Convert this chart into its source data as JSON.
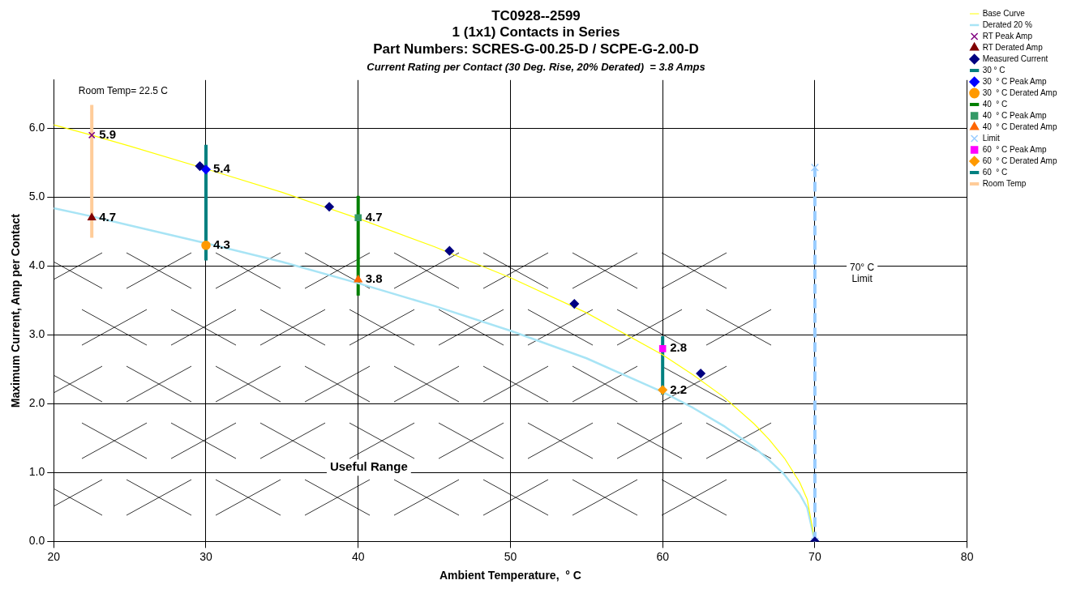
{
  "chart_data": {
    "type": "line",
    "title": "TC0928--2599\n1 (1x1) Contacts in Series\nPart Numbers: SCRES-G-00.25-D / SCPE-G-2.00-D",
    "subtitle": "Current Rating per Contact (30 Deg. Rise, 20% Derated)  = 3.8 Amps",
    "xlabel": "Ambient Temperature,  ° C",
    "ylabel": "Maximum Current, Amp per Contact",
    "xlim": [
      20,
      80
    ],
    "xticks": [
      20,
      30,
      40,
      50,
      60,
      70,
      80
    ],
    "ylim": [
      0,
      6.7
    ],
    "yticks": [
      {
        "value": 0,
        "label": "0.0"
      },
      {
        "value": 1,
        "label": "1.0"
      },
      {
        "value": 2,
        "label": "2.0"
      },
      {
        "value": 3,
        "label": "3.0"
      },
      {
        "value": 4,
        "label": "4.0"
      },
      {
        "value": 5,
        "label": "5.0"
      },
      {
        "value": 6,
        "label": "6.0"
      }
    ],
    "grid": true,
    "legend": "top right",
    "annotations": [
      "Room Temp= 22.5 C",
      "Useful Range",
      "70° C\nLimit"
    ],
    "series": [
      {
        "name": "Base Curve",
        "type": "line",
        "color": "#ffff00",
        "marker": "none",
        "x": [
          20,
          22.5,
          25,
          30,
          35,
          40,
          45,
          50,
          55,
          60,
          62,
          64,
          66,
          67,
          68,
          69,
          69.5,
          70
        ],
        "values": [
          6.05,
          5.9,
          5.74,
          5.41,
          5.07,
          4.69,
          4.28,
          3.83,
          3.32,
          2.71,
          2.42,
          2.1,
          1.71,
          1.48,
          1.21,
          0.86,
          0.61,
          0
        ]
      },
      {
        "name": "Derated 20 %",
        "type": "line",
        "color": "#a8e4f5",
        "marker": "none",
        "x": [
          20,
          22.5,
          25,
          30,
          35,
          40,
          45,
          50,
          55,
          60,
          62,
          64,
          66,
          67,
          68,
          69,
          69.5,
          70
        ],
        "values": [
          4.84,
          4.72,
          4.59,
          4.33,
          4.06,
          3.75,
          3.42,
          3.06,
          2.66,
          2.17,
          1.94,
          1.68,
          1.37,
          1.18,
          0.97,
          0.69,
          0.49,
          0
        ]
      },
      {
        "name": "RT Peak Amp",
        "type": "scatter",
        "color": "#800080",
        "marker": "cross",
        "x": [
          22.5
        ],
        "values": [
          5.9
        ],
        "value_labels": [
          "5.9"
        ]
      },
      {
        "name": "RT Derated Amp",
        "type": "scatter",
        "color": "#800000",
        "marker": "triangle",
        "x": [
          22.5
        ],
        "values": [
          4.7
        ],
        "value_labels": [
          "4.7"
        ]
      },
      {
        "name": "Measured Current",
        "type": "scatter",
        "color": "#000080",
        "marker": "diamond",
        "x": [
          29.6,
          38.1,
          46.0,
          54.2,
          62.5,
          70
        ],
        "values": [
          5.45,
          4.86,
          4.22,
          3.45,
          2.44,
          0
        ]
      },
      {
        "name": "30 ° C",
        "type": "line",
        "color": "#008080",
        "marker": "none",
        "x": [
          30,
          30
        ],
        "values": [
          4.08,
          5.76
        ]
      },
      {
        "name": "30  ° C Peak Amp",
        "type": "scatter",
        "color": "#0000ff",
        "marker": "diamond",
        "x": [
          30
        ],
        "values": [
          5.4
        ],
        "value_labels": [
          "5.4"
        ]
      },
      {
        "name": "30  ° C Derated Amp",
        "type": "scatter",
        "color": "#ff9900",
        "marker": "circle",
        "x": [
          30
        ],
        "values": [
          4.3
        ],
        "value_labels": [
          "4.3"
        ]
      },
      {
        "name": "40  ° C",
        "type": "line",
        "color": "#008000",
        "marker": "none",
        "x": [
          40,
          40
        ],
        "values": [
          3.57,
          5.02
        ]
      },
      {
        "name": "40  ° C Peak Amp",
        "type": "scatter",
        "color": "#339966",
        "marker": "square",
        "x": [
          40
        ],
        "values": [
          4.7
        ],
        "value_labels": [
          "4.7"
        ]
      },
      {
        "name": "40  ° C Derated Amp",
        "type": "scatter",
        "color": "#ff6600",
        "marker": "triangle",
        "x": [
          40
        ],
        "values": [
          3.8
        ],
        "value_labels": [
          "3.8"
        ]
      },
      {
        "name": "Limit",
        "type": "line",
        "color": "#99ccff",
        "marker": "cross",
        "line_style": "dashed",
        "x": [
          70,
          70
        ],
        "values": [
          0,
          5.43
        ]
      },
      {
        "name": "60  ° C Peak Amp",
        "type": "scatter",
        "color": "#ff00ff",
        "marker": "square",
        "x": [
          60
        ],
        "values": [
          2.8
        ],
        "value_labels": [
          "2.8"
        ]
      },
      {
        "name": "60  ° C Derated Amp",
        "type": "scatter",
        "color": "#ff9900",
        "marker": "diamond",
        "x": [
          60
        ],
        "values": [
          2.2
        ],
        "value_labels": [
          "2.2"
        ]
      },
      {
        "name": "60  ° C",
        "type": "line",
        "color": "#008080",
        "marker": "none",
        "x": [
          60,
          60
        ],
        "values": [
          2.13,
          2.98
        ]
      },
      {
        "name": "Room Temp",
        "type": "line",
        "color": "#ffcc99",
        "marker": "none",
        "x": [
          22.5,
          22.5
        ],
        "values": [
          4.41,
          6.34
        ]
      }
    ]
  }
}
